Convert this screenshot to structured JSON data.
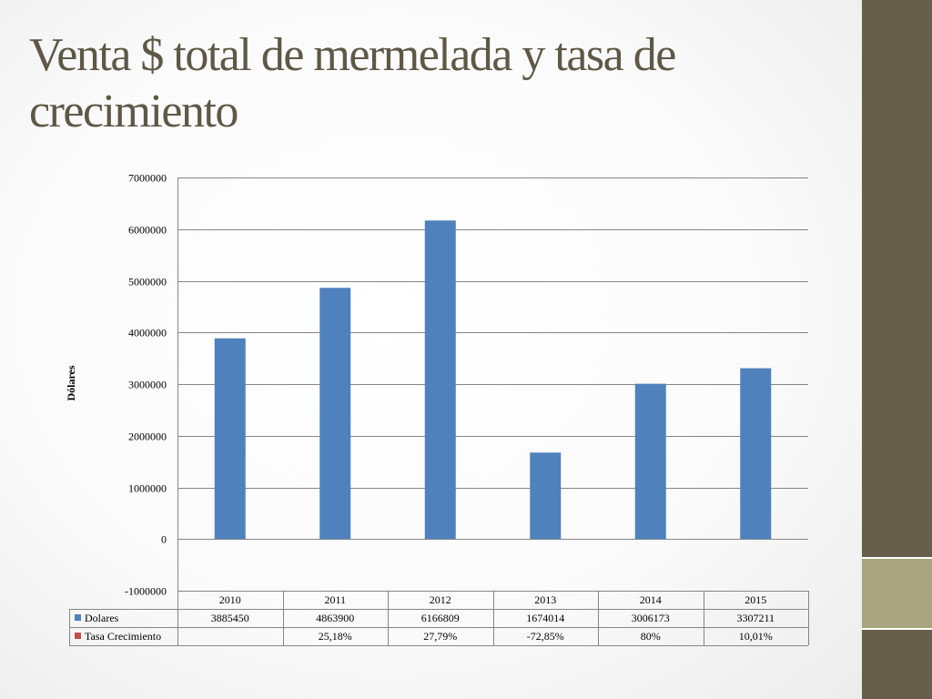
{
  "slide": {
    "title": "Venta $ total de mermelada y tasa de crecimiento"
  },
  "chart_data": {
    "type": "bar",
    "categories": [
      "2010",
      "2011",
      "2012",
      "2013",
      "2014",
      "2015"
    ],
    "series": [
      {
        "name": "Dolares",
        "values": [
          3885450,
          4863900,
          6166809,
          1674014,
          3006173,
          3307211
        ],
        "table_labels": [
          "3885450",
          "4863900",
          "6166809",
          "1674014",
          "3006173",
          "3307211"
        ],
        "color": "#4f81bd"
      },
      {
        "name": "Tasa Crecimiento",
        "values": [
          null,
          25.18,
          27.79,
          -72.85,
          80,
          10.01
        ],
        "table_labels": [
          "",
          "25,18%",
          "27,79%",
          "-72,85%",
          "80%",
          "10,01%"
        ],
        "color": "#c0504d"
      }
    ],
    "title": "",
    "xlabel": "",
    "ylabel": "Dólares",
    "ylim": [
      -1000000,
      7000000
    ],
    "yticks": [
      7000000,
      6000000,
      5000000,
      4000000,
      3000000,
      2000000,
      1000000,
      0,
      -1000000
    ],
    "grid": true,
    "legend": "data-table"
  },
  "colors": {
    "sidebar": "#675f4b",
    "sidebar_accent": "#a8a57e",
    "title_text": "#5e5847",
    "bar": "#4f81bd",
    "gridline": "#868686"
  }
}
